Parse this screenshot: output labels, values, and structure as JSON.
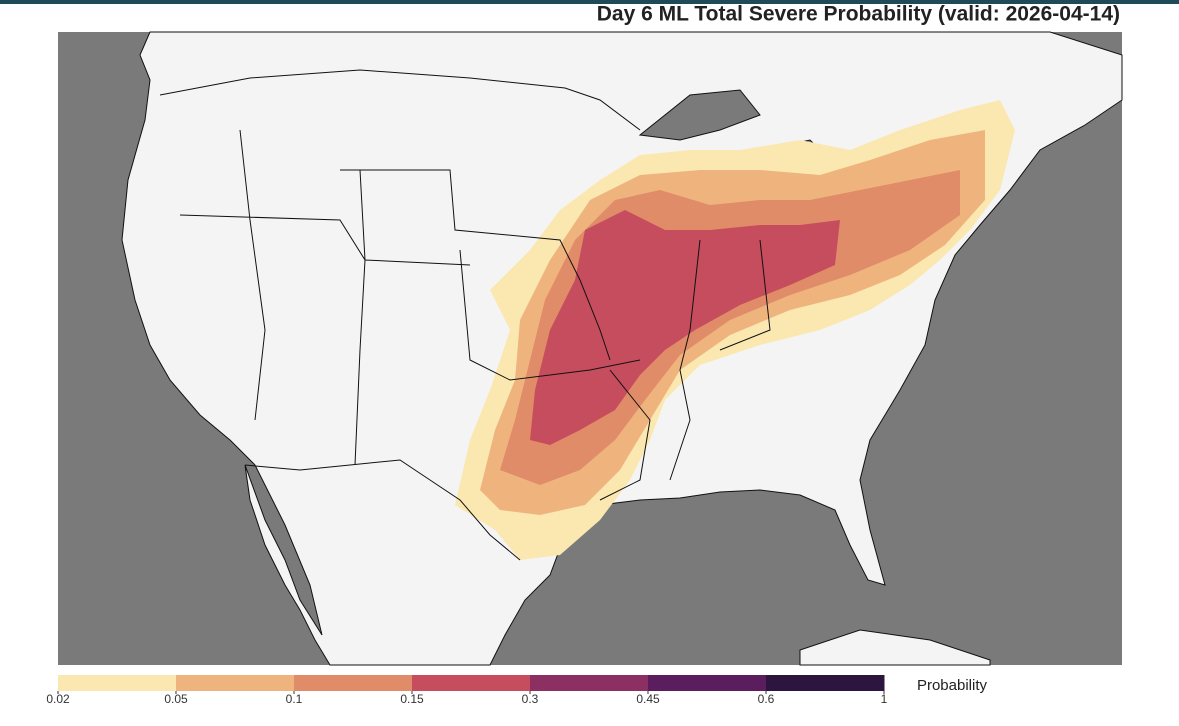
{
  "title": "Day 6 ML Total Severe Probability (valid: 2026-04-14)",
  "colorbar": {
    "label": "Probability",
    "ticks": [
      0.02,
      0.05,
      0.1,
      0.15,
      0.3,
      0.45,
      0.6,
      1
    ],
    "colors": [
      "#fbe8b1",
      "#efb47e",
      "#e08c68",
      "#c64d5d",
      "#8c2f63",
      "#5a1e5e",
      "#2c1640"
    ]
  }
}
